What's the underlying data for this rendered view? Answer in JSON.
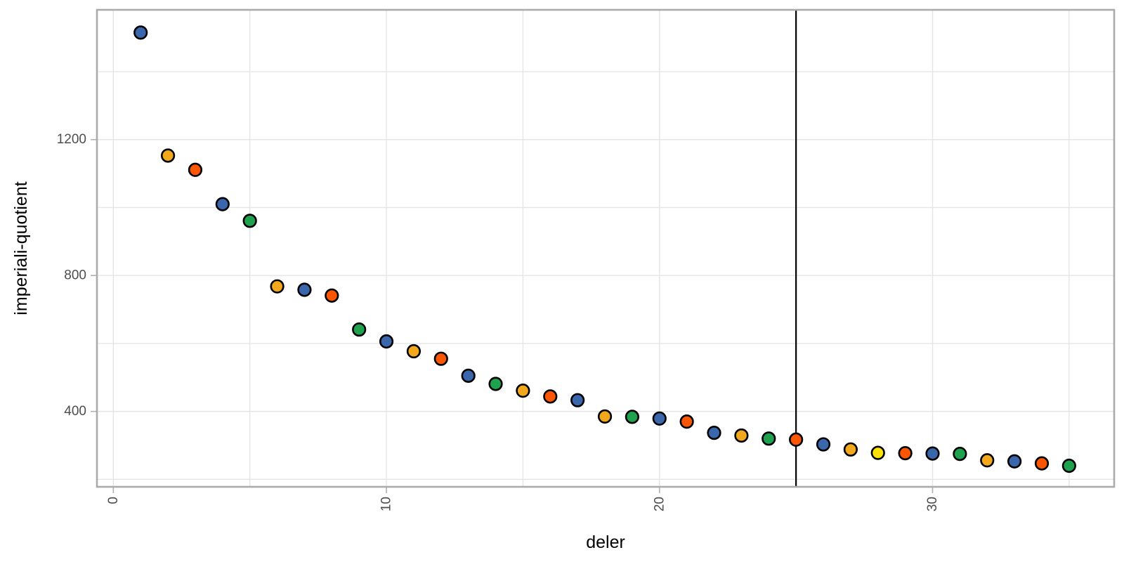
{
  "chart_data": {
    "type": "scatter",
    "title": "",
    "xlabel": "deler",
    "ylabel": "imperiali-quotient",
    "xlim": [
      -0.6,
      36.65
    ],
    "ylim": [
      178,
      1582
    ],
    "x_ticks": [
      0,
      10,
      20,
      30
    ],
    "x_tick_labels": [
      "0",
      "10",
      "20",
      "30"
    ],
    "x_gridlines": [
      0,
      5,
      10,
      15,
      20,
      25,
      30,
      35
    ],
    "y_ticks": [
      400,
      800,
      1200
    ],
    "y_tick_labels": [
      "400",
      "800",
      "1200"
    ],
    "y_gridlines": [
      200,
      400,
      600,
      800,
      1000,
      1200,
      1400
    ],
    "grid_on": true,
    "legend": "none",
    "x_tick_label_angle": 90,
    "vline_x": 25,
    "colors": {
      "blue": "#3a66ab",
      "gold": "#f2a81d",
      "orange": "#fd5602",
      "green": "#1fa24e",
      "yellow": "#ffe205"
    },
    "point_outline_color": "#000000",
    "vline_color": "#000000",
    "grid_color": "#e5e5e5",
    "panel_border_color": "#ababab",
    "tick_mark_color": "#b0b0b0",
    "points": [
      {
        "x": 1,
        "y": 1515,
        "color": "blue"
      },
      {
        "x": 2,
        "y": 1153,
        "color": "gold"
      },
      {
        "x": 3,
        "y": 1111,
        "color": "orange"
      },
      {
        "x": 4,
        "y": 1010,
        "color": "blue"
      },
      {
        "x": 5,
        "y": 961,
        "color": "green"
      },
      {
        "x": 6,
        "y": 768,
        "color": "gold"
      },
      {
        "x": 7,
        "y": 758,
        "color": "blue"
      },
      {
        "x": 8,
        "y": 741,
        "color": "orange"
      },
      {
        "x": 9,
        "y": 641,
        "color": "green"
      },
      {
        "x": 10,
        "y": 606,
        "color": "blue"
      },
      {
        "x": 11,
        "y": 577,
        "color": "gold"
      },
      {
        "x": 12,
        "y": 555,
        "color": "orange"
      },
      {
        "x": 13,
        "y": 505,
        "color": "blue"
      },
      {
        "x": 14,
        "y": 481,
        "color": "green"
      },
      {
        "x": 15,
        "y": 461,
        "color": "gold"
      },
      {
        "x": 16,
        "y": 444,
        "color": "orange"
      },
      {
        "x": 17,
        "y": 433,
        "color": "blue"
      },
      {
        "x": 18,
        "y": 385,
        "color": "gold"
      },
      {
        "x": 19,
        "y": 384,
        "color": "green"
      },
      {
        "x": 20,
        "y": 379,
        "color": "blue"
      },
      {
        "x": 21,
        "y": 370,
        "color": "orange"
      },
      {
        "x": 22,
        "y": 337,
        "color": "blue"
      },
      {
        "x": 23,
        "y": 329,
        "color": "gold"
      },
      {
        "x": 24,
        "y": 320,
        "color": "green"
      },
      {
        "x": 25,
        "y": 317,
        "color": "orange"
      },
      {
        "x": 26,
        "y": 303,
        "color": "blue"
      },
      {
        "x": 27,
        "y": 288,
        "color": "gold"
      },
      {
        "x": 28,
        "y": 278,
        "color": "yellow"
      },
      {
        "x": 29,
        "y": 277,
        "color": "orange"
      },
      {
        "x": 30,
        "y": 276,
        "color": "blue"
      },
      {
        "x": 31,
        "y": 275,
        "color": "green"
      },
      {
        "x": 32,
        "y": 256,
        "color": "gold"
      },
      {
        "x": 33,
        "y": 253,
        "color": "blue"
      },
      {
        "x": 34,
        "y": 247,
        "color": "orange"
      },
      {
        "x": 35,
        "y": 240,
        "color": "green"
      }
    ]
  }
}
